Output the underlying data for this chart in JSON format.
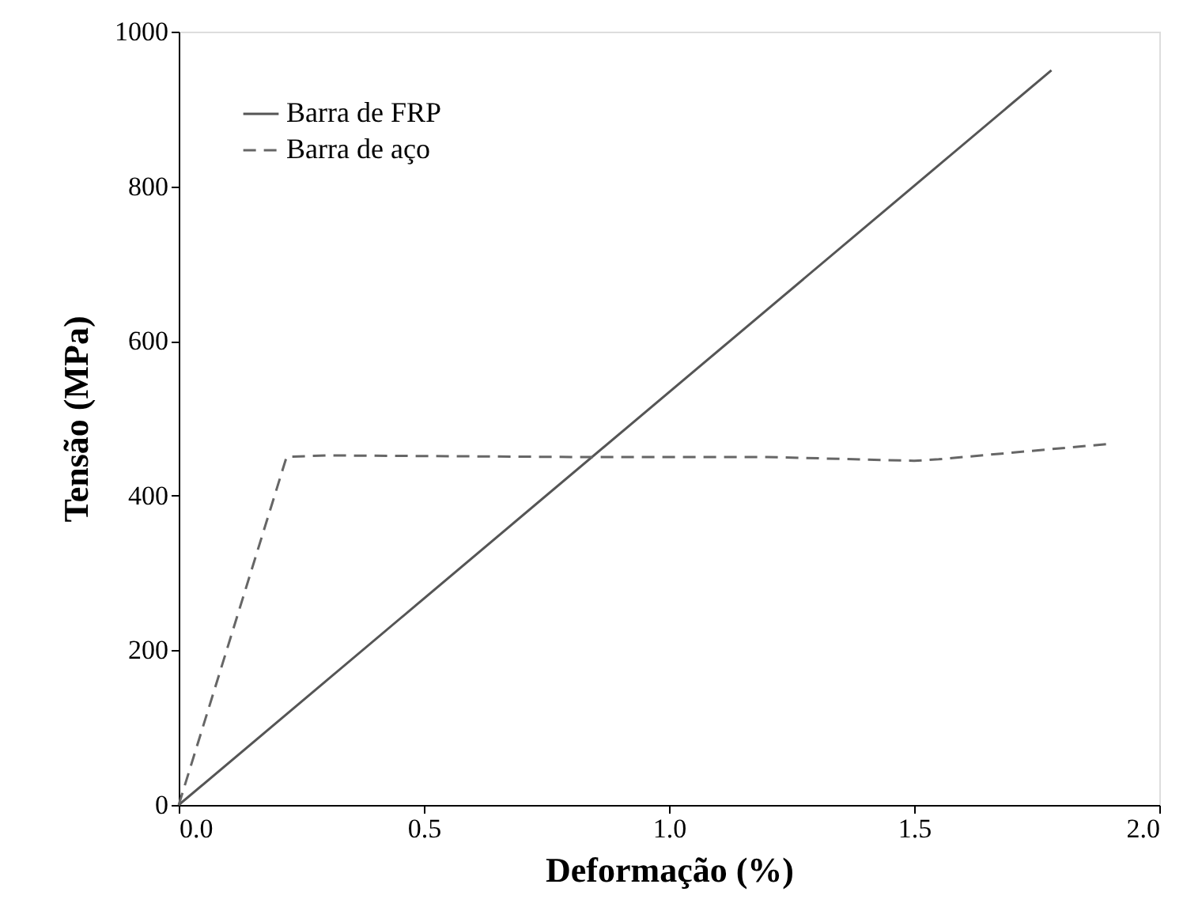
{
  "chart_data": {
    "type": "line",
    "xlabel": "Deformação (%)",
    "ylabel": "Tensão (MPa)",
    "xlim": [
      0,
      2
    ],
    "xticks": [
      {
        "value": 0,
        "label": "0.0"
      },
      {
        "value": 0.5,
        "label": "0.5"
      },
      {
        "value": 1,
        "label": "1.0"
      },
      {
        "value": 1.5,
        "label": "1.5"
      },
      {
        "value": 2,
        "label": "2.0"
      }
    ],
    "ylim": [
      0,
      1000
    ],
    "yticks": [
      0,
      200,
      400,
      600,
      800,
      1000
    ],
    "grid": false,
    "legend": "top left",
    "marker": "none",
    "series": [
      {
        "name": "Barra de FRP",
        "color": "#555555",
        "line_style": "solid",
        "x": [
          0,
          1.78
        ],
        "values": [
          0,
          950
        ]
      },
      {
        "name": "Barra de aço",
        "color": "#666666",
        "line_style": "dashed",
        "x": [
          0,
          0.22,
          0.3,
          0.8,
          1.2,
          1.5,
          1.55,
          1.9
        ],
        "values": [
          0,
          450,
          452,
          450,
          450,
          445,
          447,
          467
        ]
      }
    ]
  }
}
